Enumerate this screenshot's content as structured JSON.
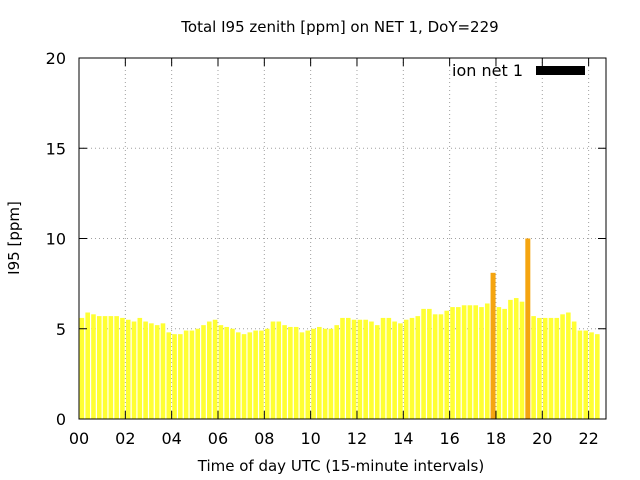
{
  "chart_data": {
    "type": "bar",
    "title": "Total I95 zenith [ppm] on NET 1, DoY=229",
    "xlabel": "Time of day UTC (15-minute intervals)",
    "ylabel": "I95 [ppm]",
    "xlim": [
      0,
      22.75
    ],
    "ylim": [
      0,
      20
    ],
    "x_ticks": [
      "00",
      "02",
      "04",
      "06",
      "08",
      "10",
      "12",
      "14",
      "16",
      "18",
      "20",
      "22"
    ],
    "y_ticks": [
      "0",
      "5",
      "10",
      "15",
      "20"
    ],
    "grid": true,
    "legend": {
      "position": "top-right"
    },
    "series": [
      {
        "name": "ion net 1",
        "legend_color": "#000000",
        "bar_color": "#ffff33",
        "highlight_color": "#f5a510",
        "highlighted_x": [
          18.0,
          19.5
        ],
        "x": [
          0.25,
          0.5,
          0.75,
          1.0,
          1.25,
          1.5,
          1.75,
          2.0,
          2.25,
          2.5,
          2.75,
          3.0,
          3.25,
          3.5,
          3.75,
          4.0,
          4.25,
          4.5,
          4.75,
          5.0,
          5.25,
          5.5,
          5.75,
          6.0,
          6.25,
          6.5,
          6.75,
          7.0,
          7.25,
          7.5,
          7.75,
          8.0,
          8.25,
          8.5,
          8.75,
          9.0,
          9.25,
          9.5,
          9.75,
          10.0,
          10.25,
          10.5,
          10.75,
          11.0,
          11.25,
          11.5,
          11.75,
          12.0,
          12.25,
          12.5,
          12.75,
          13.0,
          13.25,
          13.5,
          13.75,
          14.0,
          14.25,
          14.5,
          14.75,
          15.0,
          15.25,
          15.5,
          15.75,
          16.0,
          16.25,
          16.5,
          16.75,
          17.0,
          17.25,
          17.5,
          17.75,
          18.0,
          18.25,
          18.5,
          18.75,
          19.0,
          19.25,
          19.5,
          19.75,
          20.0,
          20.25,
          20.5,
          20.75,
          21.0,
          21.25,
          21.5,
          21.75,
          22.0,
          22.25,
          22.5
        ],
        "values": [
          5.6,
          5.9,
          5.8,
          5.7,
          5.7,
          5.7,
          5.7,
          5.6,
          5.5,
          5.4,
          5.6,
          5.4,
          5.3,
          5.2,
          5.3,
          4.8,
          4.7,
          4.7,
          4.9,
          4.9,
          5.0,
          5.2,
          5.4,
          5.5,
          5.2,
          5.1,
          5.0,
          4.8,
          4.7,
          4.8,
          4.9,
          4.9,
          5.0,
          5.4,
          5.4,
          5.2,
          5.1,
          5.1,
          4.8,
          4.9,
          5.0,
          5.1,
          5.0,
          5.0,
          5.2,
          5.6,
          5.6,
          5.5,
          5.5,
          5.5,
          5.4,
          5.2,
          5.6,
          5.6,
          5.4,
          5.3,
          5.5,
          5.6,
          5.7,
          6.1,
          6.1,
          5.8,
          5.8,
          6.0,
          6.2,
          6.2,
          6.3,
          6.3,
          6.3,
          6.2,
          6.4,
          8.1,
          6.2,
          6.1,
          6.6,
          6.7,
          6.5,
          10.0,
          5.7,
          5.6,
          5.6,
          5.6,
          5.6,
          5.8,
          5.9,
          5.4,
          4.9,
          4.9,
          4.8,
          4.7
        ]
      }
    ]
  }
}
